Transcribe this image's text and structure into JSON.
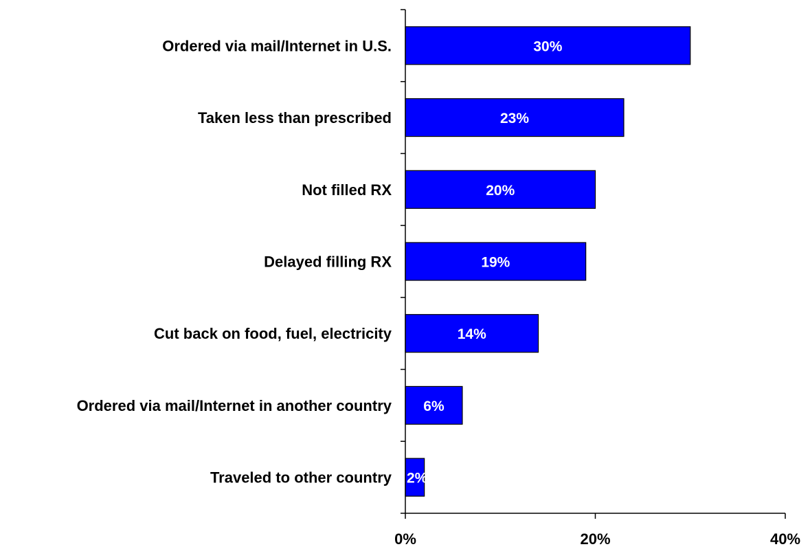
{
  "chart_data": {
    "type": "bar",
    "orientation": "horizontal",
    "categories": [
      "Ordered via mail/Internet in U.S.",
      "Taken less than prescribed",
      "Not filled RX",
      "Delayed filling RX",
      "Cut back on food, fuel, electricity",
      "Ordered via mail/Internet in another country",
      "Traveled to other country"
    ],
    "values": [
      30,
      23,
      20,
      19,
      14,
      6,
      2
    ],
    "data_labels": [
      "30%",
      "23%",
      "20%",
      "19%",
      "14%",
      "6%",
      "2%"
    ],
    "xlim": [
      0,
      40
    ],
    "x_ticks": [
      0,
      20,
      40
    ],
    "x_tick_labels": [
      "0%",
      "20%",
      "40%"
    ],
    "bar_color": "#0000FF",
    "bar_edge_color": "#000000",
    "data_label_color": "#FFFFFF",
    "grid": false,
    "legend": "none"
  }
}
